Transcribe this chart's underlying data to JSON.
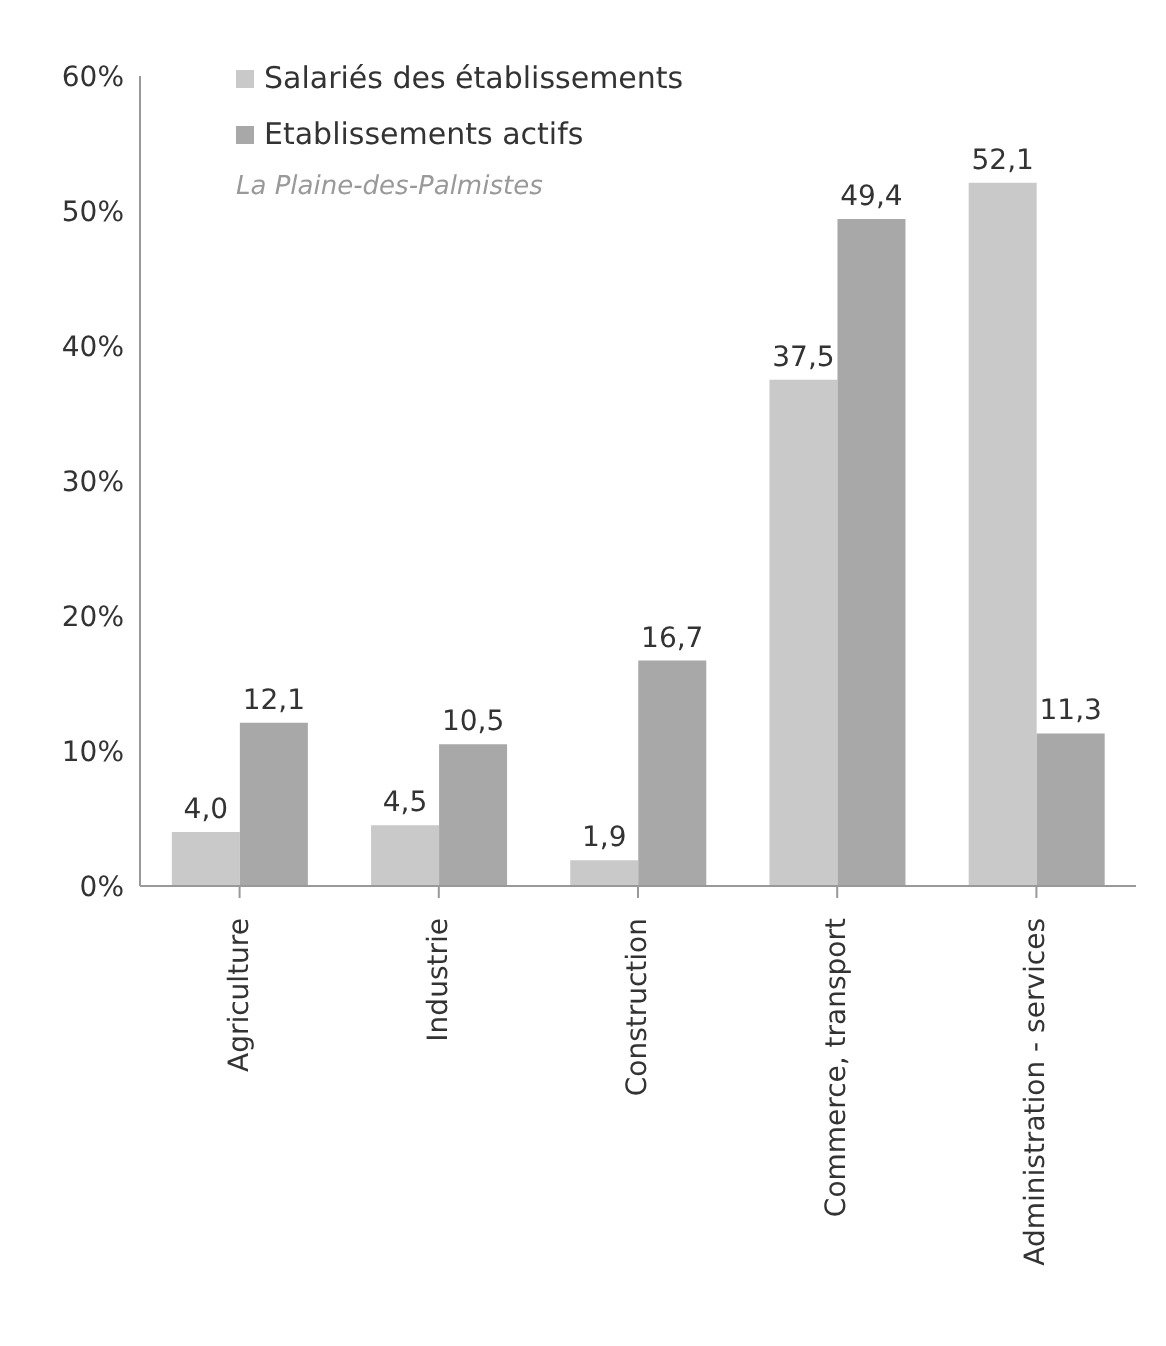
{
  "chart_data": {
    "type": "bar",
    "subtitle": "La Plaine-des-Palmistes",
    "categories": [
      "Agriculture",
      "Industrie",
      "Construction",
      "Commerce, transport",
      "Administration - services"
    ],
    "series": [
      {
        "name": "Salariés des établissements",
        "color": "#c9c9c9",
        "values": [
          4.0,
          4.5,
          1.9,
          37.5,
          52.1
        ],
        "value_labels": [
          "4,0",
          "4,5",
          "1,9",
          "37,5",
          "52,1"
        ]
      },
      {
        "name": "Etablissements actifs",
        "color": "#a8a8a8",
        "values": [
          12.1,
          10.5,
          16.7,
          49.4,
          11.3
        ],
        "value_labels": [
          "12,1",
          "10,5",
          "16,7",
          "49,4",
          "11,3"
        ]
      }
    ],
    "ylim": [
      0,
      60
    ],
    "yticks": [
      {
        "value": 0,
        "label": "0%"
      },
      {
        "value": 10,
        "label": "10%"
      },
      {
        "value": 20,
        "label": "20%"
      },
      {
        "value": 30,
        "label": "30%"
      },
      {
        "value": 40,
        "label": "40%"
      },
      {
        "value": 50,
        "label": "50%"
      },
      {
        "value": 60,
        "label": "60%"
      }
    ],
    "legend": "top left",
    "grid": false
  }
}
